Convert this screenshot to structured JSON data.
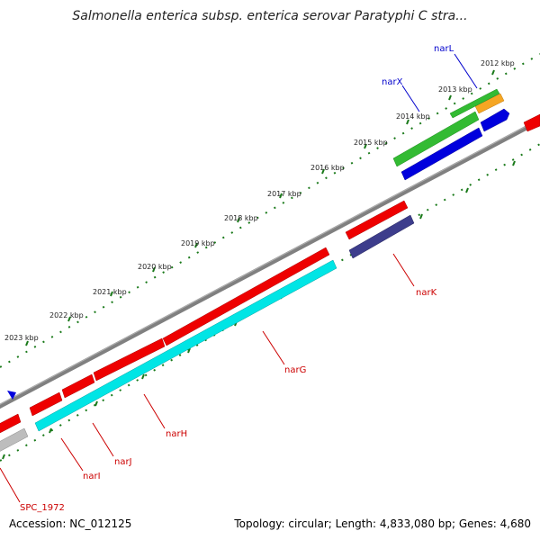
{
  "title": "Salmonella enterica subsp. enterica serovar Paratyphi C stra...",
  "footer": {
    "accession": "Accession: NC_012125",
    "topology": "Topology: circular; Length: 4,833,080 bp; Genes: 4,680"
  },
  "tick_labels": [
    "2012 kbp",
    "2013 kbp",
    "2014 kbp",
    "2015 kbp",
    "2016 kbp",
    "2017 kbp",
    "2018 kbp",
    "2019 kbp",
    "2020 kbp",
    "2021 kbp",
    "2022 kbp",
    "2023 kbp"
  ],
  "gene_labels": {
    "narL": "narL",
    "narX": "narX",
    "narK": "narK",
    "narG": "narG",
    "narH": "narH",
    "narJ": "narJ",
    "narI": "narI",
    "spc": "SPC_1972"
  },
  "colors": {
    "backbone": "#808080",
    "tick_mark": "#1a7a1a",
    "gene_red": "#ee0000",
    "gene_cyan": "#00e5e5",
    "gene_blue": "#0000dd",
    "gene_green": "#33bb33",
    "gene_orange": "#f5a623",
    "gene_navy": "#3d3d8c",
    "gene_grey": "#bdbdbd",
    "label_red": "#cc0000",
    "label_blue": "#0000cc"
  }
}
